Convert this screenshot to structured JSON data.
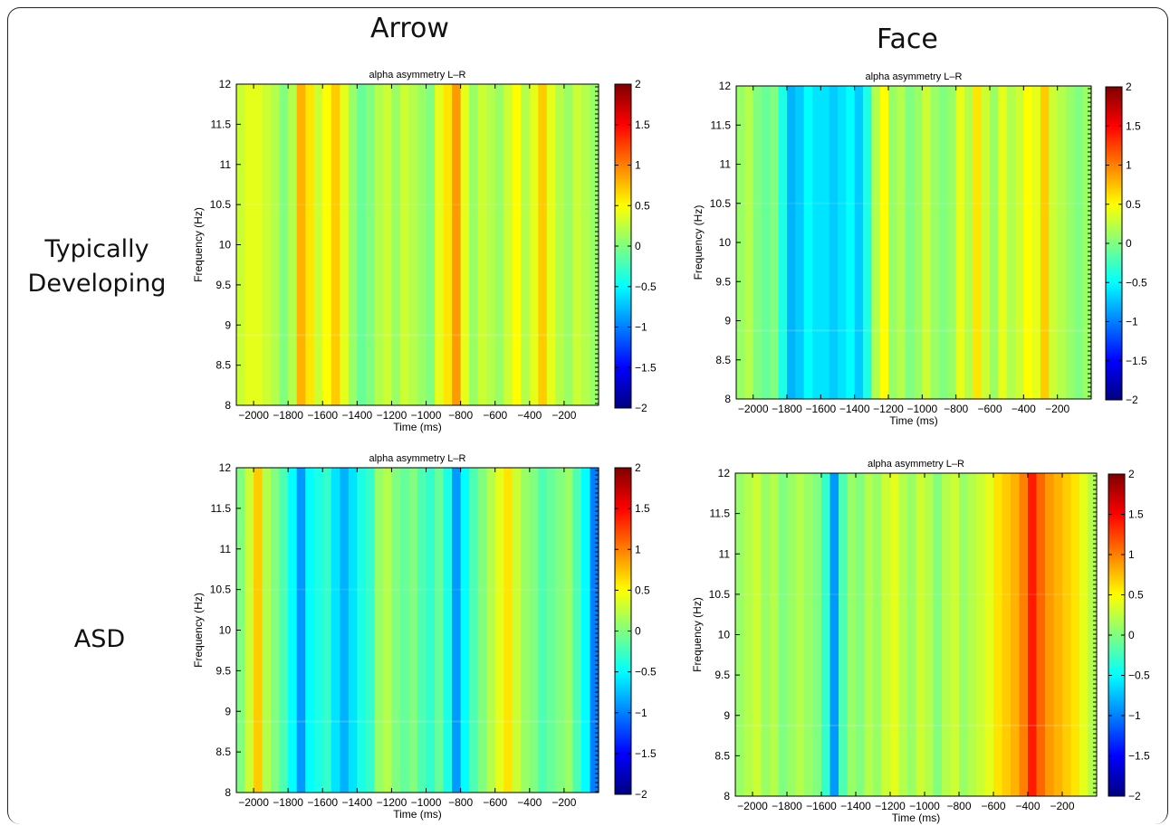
{
  "columns": [
    "Arrow",
    "Face"
  ],
  "rows": [
    "Typically Developing",
    "ASD"
  ],
  "chart_data": [
    {
      "type": "heatmap",
      "title": "alpha asymmetry L–R",
      "xlabel": "Time (ms)",
      "ylabel": "Frequency (Hz)",
      "xlim": [
        -2100,
        0
      ],
      "ylim": [
        8,
        12
      ],
      "xticks": [
        -2000,
        -1800,
        -1600,
        -1400,
        -1200,
        -1000,
        -800,
        -600,
        -400,
        -200
      ],
      "yticks": [
        8,
        8.5,
        9,
        9.5,
        10,
        10.5,
        11,
        11.5,
        12
      ],
      "clim": [
        -2,
        2
      ],
      "cticks": [
        -2,
        -1.5,
        -1,
        -0.5,
        0,
        0.5,
        1,
        1.5,
        2
      ],
      "colormap": "jet",
      "time_profile": {
        "x": [
          -2100,
          -2050,
          -2000,
          -1950,
          -1900,
          -1850,
          -1800,
          -1750,
          -1700,
          -1650,
          -1600,
          -1550,
          -1500,
          -1450,
          -1400,
          -1350,
          -1300,
          -1250,
          -1200,
          -1150,
          -1100,
          -1050,
          -1000,
          -950,
          -900,
          -850,
          -800,
          -750,
          -700,
          -650,
          -600,
          -550,
          -500,
          -450,
          -400,
          -350,
          -300,
          -250,
          -200,
          -150,
          -100,
          -50
        ],
        "values": [
          0.3,
          0.4,
          0.4,
          0.3,
          0.2,
          0.0,
          0.2,
          0.8,
          0.6,
          0.3,
          0.5,
          0.7,
          0.4,
          0.1,
          -0.1,
          0.0,
          0.2,
          0.3,
          0.1,
          0.3,
          0.2,
          0.1,
          0.0,
          0.4,
          0.6,
          0.9,
          0.4,
          0.1,
          0.3,
          0.2,
          0.1,
          0.3,
          0.5,
          0.2,
          0.4,
          0.7,
          0.4,
          0.2,
          0.1,
          0.3,
          0.2,
          0.1
        ]
      }
    },
    {
      "type": "heatmap",
      "title": "alpha asymmetry L–R",
      "xlabel": "Time (ms)",
      "ylabel": "Frequency (Hz)",
      "xlim": [
        -2100,
        0
      ],
      "ylim": [
        8,
        12
      ],
      "xticks": [
        -2000,
        -1800,
        -1600,
        -1400,
        -1200,
        -1000,
        -800,
        -600,
        -400,
        -200
      ],
      "yticks": [
        8,
        8.5,
        9,
        9.5,
        10,
        10.5,
        11,
        11.5,
        12
      ],
      "clim": [
        -2,
        2
      ],
      "cticks": [
        -2,
        -1.5,
        -1,
        -0.5,
        0,
        0.5,
        1,
        1.5,
        2
      ],
      "colormap": "jet",
      "time_profile": {
        "x": [
          -2100,
          -2050,
          -2000,
          -1950,
          -1900,
          -1850,
          -1800,
          -1750,
          -1700,
          -1650,
          -1600,
          -1550,
          -1500,
          -1450,
          -1400,
          -1350,
          -1300,
          -1250,
          -1200,
          -1150,
          -1100,
          -1050,
          -1000,
          -950,
          -900,
          -850,
          -800,
          -750,
          -700,
          -650,
          -600,
          -550,
          -500,
          -450,
          -400,
          -350,
          -300,
          -250,
          -200,
          -150,
          -100,
          -50
        ],
        "values": [
          0.1,
          0.2,
          0.0,
          -0.1,
          0.0,
          -0.4,
          -0.8,
          -0.7,
          -0.5,
          -0.6,
          -0.6,
          -0.7,
          -0.6,
          -0.5,
          -0.7,
          -0.4,
          0.2,
          0.5,
          0.1,
          0.2,
          0.0,
          0.1,
          0.3,
          0.1,
          0.0,
          0.1,
          0.4,
          0.2,
          0.6,
          0.3,
          0.1,
          0.4,
          0.2,
          0.3,
          0.5,
          0.4,
          0.7,
          0.3,
          0.2,
          0.1,
          0.0,
          0.1
        ]
      }
    },
    {
      "type": "heatmap",
      "title": "alpha asymmetry L–R",
      "xlabel": "Time (ms)",
      "ylabel": "Frequency (Hz)",
      "xlim": [
        -2100,
        0
      ],
      "ylim": [
        8,
        12
      ],
      "xticks": [
        -2000,
        -1800,
        -1600,
        -1400,
        -1200,
        -1000,
        -800,
        -600,
        -400,
        -200
      ],
      "yticks": [
        8,
        8.5,
        9,
        9.5,
        10,
        10.5,
        11,
        11.5,
        12
      ],
      "clim": [
        -2,
        2
      ],
      "cticks": [
        -2,
        -1.5,
        -1,
        -0.5,
        0,
        0.5,
        1,
        1.5,
        2
      ],
      "colormap": "jet",
      "time_profile": {
        "x": [
          -2100,
          -2050,
          -2000,
          -1950,
          -1900,
          -1850,
          -1800,
          -1750,
          -1700,
          -1650,
          -1600,
          -1550,
          -1500,
          -1450,
          -1400,
          -1350,
          -1300,
          -1250,
          -1200,
          -1150,
          -1100,
          -1050,
          -1000,
          -950,
          -900,
          -850,
          -800,
          -750,
          -700,
          -650,
          -600,
          -550,
          -500,
          -450,
          -400,
          -350,
          -300,
          -250,
          -200,
          -150,
          -100,
          -50
        ],
        "values": [
          0.0,
          0.3,
          0.7,
          0.2,
          0.0,
          -0.2,
          -0.5,
          -0.9,
          -0.5,
          -0.4,
          -0.3,
          -0.6,
          -0.8,
          -0.6,
          -0.4,
          -0.3,
          0.1,
          0.2,
          0.0,
          -0.1,
          0.0,
          -0.2,
          -0.3,
          -0.1,
          -0.4,
          -0.9,
          -0.5,
          -0.2,
          0.0,
          0.2,
          0.4,
          0.6,
          0.3,
          0.1,
          0.0,
          -0.2,
          -0.1,
          0.0,
          0.1,
          -0.2,
          -0.5,
          -1.0
        ]
      }
    },
    {
      "type": "heatmap",
      "title": "alpha asymmetry L–R",
      "xlabel": "Time (ms)",
      "ylabel": "Frequency (Hz)",
      "xlim": [
        -2100,
        0
      ],
      "ylim": [
        8,
        12
      ],
      "xticks": [
        -2000,
        -1800,
        -1600,
        -1400,
        -1200,
        -1000,
        -800,
        -600,
        -400,
        -200
      ],
      "yticks": [
        8,
        8.5,
        9,
        9.5,
        10,
        10.5,
        11,
        11.5,
        12
      ],
      "clim": [
        -2,
        2
      ],
      "cticks": [
        -2,
        -1.5,
        -1,
        -0.5,
        0,
        0.5,
        1,
        1.5,
        2
      ],
      "colormap": "jet",
      "time_profile": {
        "x": [
          -2100,
          -2050,
          -2000,
          -1950,
          -1900,
          -1850,
          -1800,
          -1750,
          -1700,
          -1650,
          -1600,
          -1550,
          -1500,
          -1450,
          -1400,
          -1350,
          -1300,
          -1250,
          -1200,
          -1150,
          -1100,
          -1050,
          -1000,
          -950,
          -900,
          -850,
          -800,
          -750,
          -700,
          -650,
          -600,
          -550,
          -500,
          -450,
          -400,
          -350,
          -300,
          -250,
          -200,
          -150,
          -100,
          -50
        ],
        "values": [
          0.1,
          0.2,
          0.3,
          0.1,
          0.2,
          0.0,
          0.1,
          0.2,
          0.1,
          0.0,
          -0.3,
          -0.9,
          -0.2,
          0.1,
          0.0,
          0.2,
          0.1,
          0.3,
          0.4,
          0.2,
          0.1,
          0.3,
          0.2,
          0.0,
          0.2,
          0.3,
          0.1,
          0.2,
          0.3,
          0.4,
          0.6,
          0.7,
          0.8,
          1.0,
          1.4,
          1.1,
          0.9,
          0.8,
          0.7,
          0.6,
          0.4,
          0.2
        ]
      }
    }
  ]
}
